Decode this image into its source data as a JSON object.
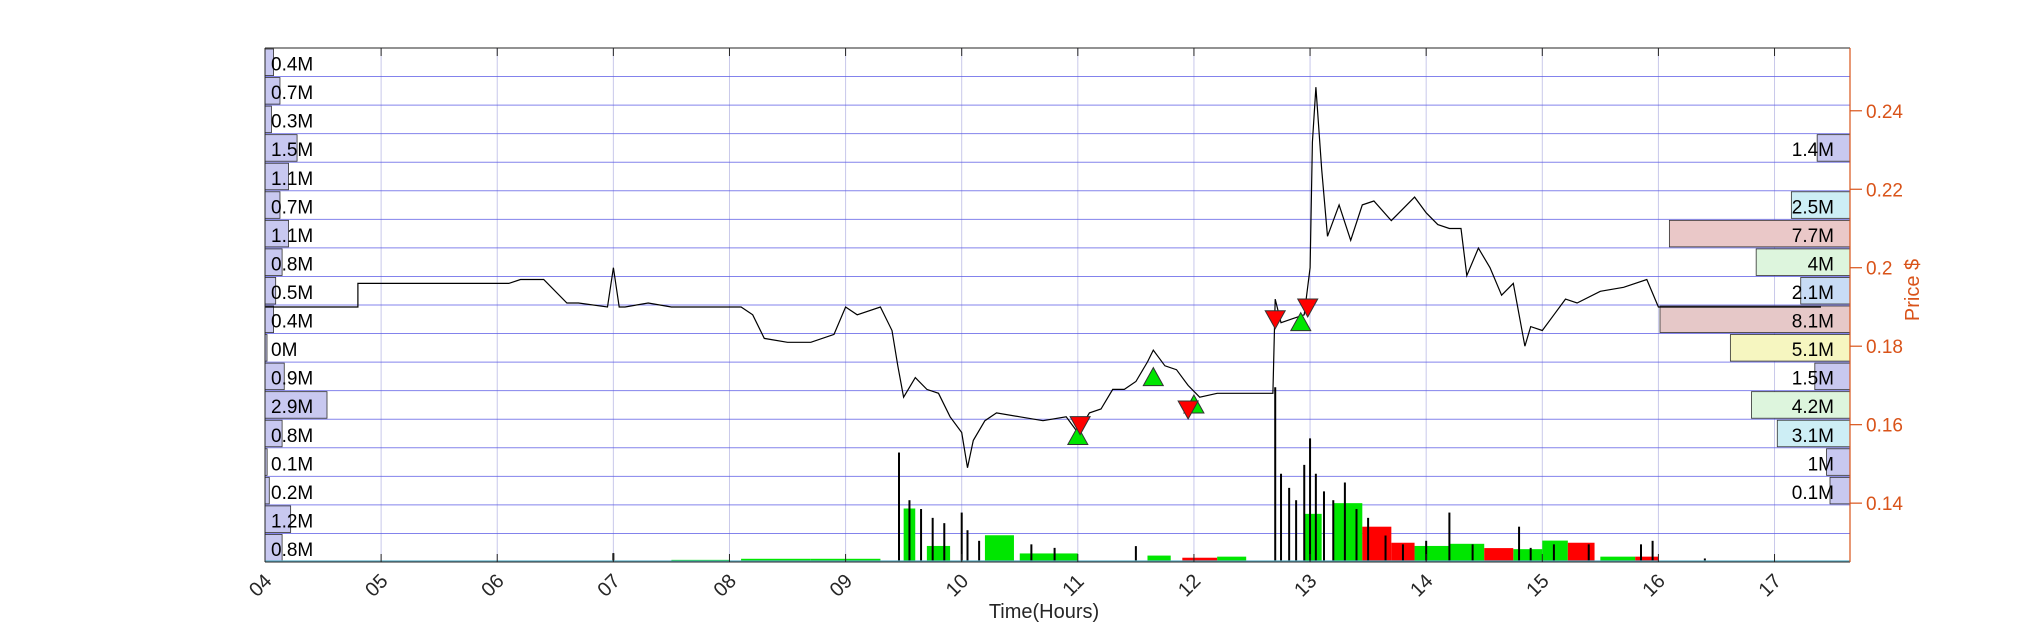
{
  "chart_data": {
    "type": "line",
    "title": "",
    "xlabel": "Time(Hours)",
    "ylabel": "Price $",
    "x_ticks": [
      "04",
      "05",
      "06",
      "07",
      "08",
      "09",
      "10",
      "11",
      "12",
      "13",
      "14",
      "15",
      "16",
      "17"
    ],
    "xlim": [
      4,
      17.65
    ],
    "ylim": [
      0.125,
      0.256
    ],
    "y_ticks": [
      "0.14",
      "0.16",
      "0.18",
      "0.2",
      "0.22",
      "0.24"
    ],
    "grid": true,
    "colors": {
      "price_line": "#000000",
      "right_axis": "#d95319",
      "grid_horizontal": "#5a5ae6",
      "grid_vertical": "#c8c8ea",
      "buy_marker": "#00e600",
      "sell_marker": "#ff0000",
      "buy_volume": "#00e600",
      "sell_volume": "#ff0000",
      "trade_volume": "#000000",
      "left_profile": "#c8c8f0"
    },
    "left_volume_profile": [
      {
        "label": "0.4M",
        "value": 0.4
      },
      {
        "label": "0.7M",
        "value": 0.7
      },
      {
        "label": "0.3M",
        "value": 0.3
      },
      {
        "label": "1.5M",
        "value": 1.5
      },
      {
        "label": "1.1M",
        "value": 1.1
      },
      {
        "label": "0.7M",
        "value": 0.7
      },
      {
        "label": "1.1M",
        "value": 1.1
      },
      {
        "label": "0.8M",
        "value": 0.8
      },
      {
        "label": "0.5M",
        "value": 0.5
      },
      {
        "label": "0.4M",
        "value": 0.4
      },
      {
        "label": "0M",
        "value": 0
      },
      {
        "label": "0.9M",
        "value": 0.9
      },
      {
        "label": "2.9M",
        "value": 2.9
      },
      {
        "label": "0.8M",
        "value": 0.8
      },
      {
        "label": "0.1M",
        "value": 0.1
      },
      {
        "label": "0.2M",
        "value": 0.2
      },
      {
        "label": "1.2M",
        "value": 1.2
      },
      {
        "label": "0.8M",
        "value": 0.8
      }
    ],
    "right_volume_profile": [
      {
        "label": "1.4M",
        "value": 1.4,
        "row": 3,
        "color": "#c8c8f0"
      },
      {
        "label": "2.5M",
        "value": 2.5,
        "row": 5,
        "color": "#cdeef5"
      },
      {
        "label": "7.7M",
        "value": 7.7,
        "row": 6,
        "color": "#eac8c8"
      },
      {
        "label": "4M",
        "value": 4.0,
        "row": 7,
        "color": "#ddf5dd"
      },
      {
        "label": "2.1M",
        "value": 2.1,
        "row": 8,
        "color": "#c8dcf5"
      },
      {
        "label": "8.1M",
        "value": 8.1,
        "row": 9,
        "color": "#e6c8c8"
      },
      {
        "label": "5.1M",
        "value": 5.1,
        "row": 10,
        "color": "#f6f6c0"
      },
      {
        "label": "1.5M",
        "value": 1.5,
        "row": 11,
        "color": "#c8c8f0"
      },
      {
        "label": "4.2M",
        "value": 4.2,
        "row": 12,
        "color": "#ddf5dd"
      },
      {
        "label": "3.1M",
        "value": 3.1,
        "row": 13,
        "color": "#cdeef5"
      },
      {
        "label": "1M",
        "value": 1.0,
        "row": 14,
        "color": "#c8c8f0"
      },
      {
        "label": "0.1M",
        "value": 0.1,
        "row": 15,
        "color": "#c8c8f0"
      }
    ],
    "series": [
      {
        "x": [
          4.0,
          4.8,
          4.8,
          5.9,
          6.1,
          6.2,
          6.4,
          6.6,
          6.7,
          6.95,
          7.0,
          7.05,
          7.1,
          7.3,
          7.5,
          7.7,
          7.9,
          8.0,
          8.1,
          8.2,
          8.3,
          8.5,
          8.7,
          8.9,
          9.0,
          9.1,
          9.3,
          9.4,
          9.45,
          9.5,
          9.6,
          9.7,
          9.8,
          9.9,
          10.0,
          10.05,
          10.1,
          10.2,
          10.3,
          10.5,
          10.7,
          10.9,
          11.0,
          11.1,
          11.2,
          11.3,
          11.4,
          11.5,
          11.6,
          11.65,
          11.75,
          11.85,
          11.95,
          12.05,
          12.2,
          12.35,
          12.5,
          12.68,
          12.7,
          12.75,
          12.85,
          12.95,
          13.0,
          13.02,
          13.05,
          13.1,
          13.15,
          13.25,
          13.35,
          13.45,
          13.55,
          13.7,
          13.9,
          14.0,
          14.1,
          14.2,
          14.3,
          14.35,
          14.45,
          14.55,
          14.65,
          14.75,
          14.85,
          14.9,
          15.0,
          15.1,
          15.2,
          15.3,
          15.5,
          15.7,
          15.9,
          16.0,
          16.2,
          16.5,
          16.8,
          17.0,
          17.2,
          17.4
        ],
        "values": [
          0.19,
          0.19,
          0.196,
          0.196,
          0.196,
          0.197,
          0.197,
          0.191,
          0.191,
          0.19,
          0.2,
          0.19,
          0.19,
          0.191,
          0.19,
          0.19,
          0.19,
          0.19,
          0.19,
          0.188,
          0.182,
          0.181,
          0.181,
          0.183,
          0.19,
          0.188,
          0.19,
          0.184,
          0.175,
          0.167,
          0.172,
          0.169,
          0.168,
          0.162,
          0.158,
          0.149,
          0.156,
          0.161,
          0.163,
          0.162,
          0.161,
          0.162,
          0.158,
          0.163,
          0.164,
          0.169,
          0.169,
          0.171,
          0.176,
          0.179,
          0.175,
          0.174,
          0.17,
          0.167,
          0.168,
          0.168,
          0.168,
          0.168,
          0.192,
          0.186,
          0.187,
          0.188,
          0.2,
          0.232,
          0.246,
          0.225,
          0.208,
          0.216,
          0.207,
          0.216,
          0.217,
          0.212,
          0.218,
          0.214,
          0.211,
          0.21,
          0.21,
          0.198,
          0.205,
          0.2,
          0.193,
          0.196,
          0.18,
          0.185,
          0.184,
          0.188,
          0.192,
          0.191,
          0.194,
          0.195,
          0.197,
          0.19,
          0.19,
          0.19,
          0.19,
          0.19,
          0.19,
          0.19
        ]
      }
    ],
    "buy_markers": [
      {
        "x": 11.0,
        "y": 0.157
      },
      {
        "x": 11.65,
        "y": 0.172
      },
      {
        "x": 12.0,
        "y": 0.165
      },
      {
        "x": 12.92,
        "y": 0.186
      }
    ],
    "sell_markers": [
      {
        "x": 11.02,
        "y": 0.16
      },
      {
        "x": 11.95,
        "y": 0.164
      },
      {
        "x": 12.7,
        "y": 0.187
      },
      {
        "x": 12.98,
        "y": 0.19
      }
    ],
    "buy_volume_blocks": [
      {
        "x0": 9.5,
        "x1": 9.6,
        "v": 0.5
      },
      {
        "x0": 9.7,
        "x1": 9.9,
        "v": 0.15
      },
      {
        "x0": 10.2,
        "x1": 10.45,
        "v": 0.25
      },
      {
        "x0": 10.5,
        "x1": 11.0,
        "v": 0.08
      },
      {
        "x0": 11.6,
        "x1": 11.8,
        "v": 0.06
      },
      {
        "x0": 12.2,
        "x1": 12.45,
        "v": 0.05
      },
      {
        "x0": 12.95,
        "x1": 13.1,
        "v": 0.45
      },
      {
        "x0": 13.2,
        "x1": 13.45,
        "v": 0.55
      },
      {
        "x0": 13.9,
        "x1": 14.2,
        "v": 0.15
      },
      {
        "x0": 14.2,
        "x1": 14.5,
        "v": 0.17
      },
      {
        "x0": 14.75,
        "x1": 15.0,
        "v": 0.12
      },
      {
        "x0": 15.0,
        "x1": 15.22,
        "v": 0.2
      },
      {
        "x0": 15.5,
        "x1": 15.8,
        "v": 0.05
      },
      {
        "x0": 7.5,
        "x1": 8.0,
        "v": 0.02
      },
      {
        "x0": 8.1,
        "x1": 8.7,
        "v": 0.03
      },
      {
        "x0": 8.7,
        "x1": 9.3,
        "v": 0.03
      }
    ],
    "sell_volume_blocks": [
      {
        "x0": 13.45,
        "x1": 13.7,
        "v": 0.33
      },
      {
        "x0": 13.7,
        "x1": 13.9,
        "v": 0.18
      },
      {
        "x0": 14.5,
        "x1": 14.75,
        "v": 0.13
      },
      {
        "x0": 15.22,
        "x1": 15.45,
        "v": 0.18
      },
      {
        "x0": 15.8,
        "x1": 16.0,
        "v": 0.05
      },
      {
        "x0": 11.9,
        "x1": 12.2,
        "v": 0.04
      }
    ],
    "trade_volume_spikes": [
      {
        "x": 7.0,
        "v": 0.05
      },
      {
        "x": 9.46,
        "v": 0.62
      },
      {
        "x": 9.55,
        "v": 0.35
      },
      {
        "x": 9.65,
        "v": 0.3
      },
      {
        "x": 9.75,
        "v": 0.25
      },
      {
        "x": 9.85,
        "v": 0.22
      },
      {
        "x": 10.0,
        "v": 0.28
      },
      {
        "x": 10.05,
        "v": 0.18
      },
      {
        "x": 10.15,
        "v": 0.12
      },
      {
        "x": 10.6,
        "v": 0.1
      },
      {
        "x": 10.8,
        "v": 0.08
      },
      {
        "x": 11.5,
        "v": 0.09
      },
      {
        "x": 12.7,
        "v": 0.99
      },
      {
        "x": 12.75,
        "v": 0.5
      },
      {
        "x": 12.82,
        "v": 0.42
      },
      {
        "x": 12.88,
        "v": 0.35
      },
      {
        "x": 12.95,
        "v": 0.55
      },
      {
        "x": 13.0,
        "v": 0.7
      },
      {
        "x": 13.05,
        "v": 0.5
      },
      {
        "x": 13.12,
        "v": 0.4
      },
      {
        "x": 13.2,
        "v": 0.35
      },
      {
        "x": 13.3,
        "v": 0.45
      },
      {
        "x": 13.4,
        "v": 0.3
      },
      {
        "x": 13.5,
        "v": 0.25
      },
      {
        "x": 13.65,
        "v": 0.15
      },
      {
        "x": 13.8,
        "v": 0.1
      },
      {
        "x": 14.0,
        "v": 0.12
      },
      {
        "x": 14.2,
        "v": 0.28
      },
      {
        "x": 14.4,
        "v": 0.1
      },
      {
        "x": 14.8,
        "v": 0.2
      },
      {
        "x": 14.9,
        "v": 0.08
      },
      {
        "x": 15.1,
        "v": 0.1
      },
      {
        "x": 15.4,
        "v": 0.1
      },
      {
        "x": 15.85,
        "v": 0.1
      },
      {
        "x": 15.95,
        "v": 0.12
      },
      {
        "x": 16.4,
        "v": 0.02
      }
    ]
  }
}
